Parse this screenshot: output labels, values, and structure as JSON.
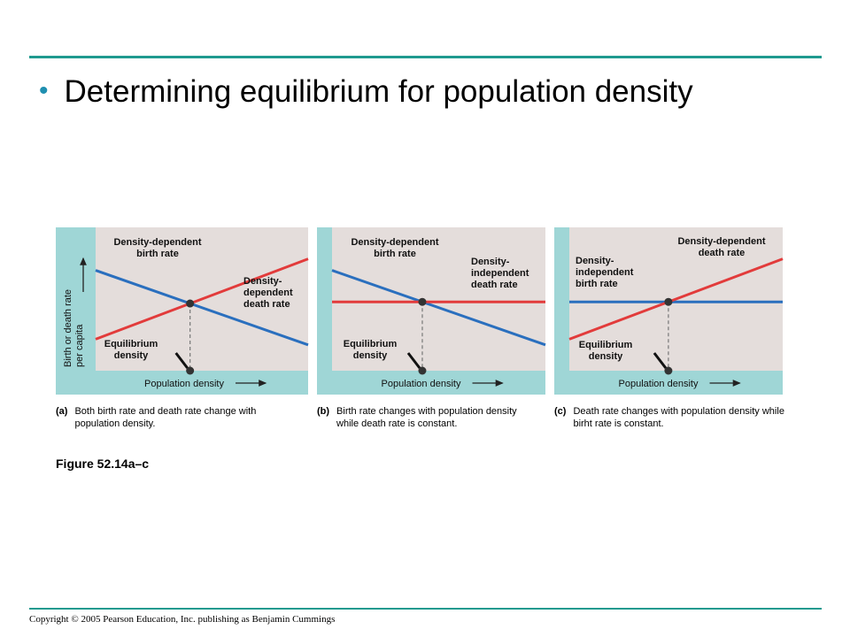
{
  "slide": {
    "bullet": "•",
    "title": "Determining equilibrium for population density",
    "figure_label": "Figure 52.14a–c",
    "copyright": "Copyright © 2005 Pearson Education, Inc. publishing as Benjamin Cummings"
  },
  "colors": {
    "accent_rule": "#1f9a8f",
    "panel_frame": "#9fd6d6",
    "plot_bg": "#e4dddb",
    "birth_rate": "#2a6fbe",
    "death_rate": "#e23b3b"
  },
  "y_axis_label": [
    "Birth or death rate",
    "per capita"
  ],
  "panels": [
    {
      "id": "a",
      "caption_label": "(a)",
      "caption_text": "Both birth rate and death rate change with population density.",
      "x_axis_label": "Population density",
      "blue_label": [
        "Density-dependent",
        "birth rate"
      ],
      "red_label": [
        "Density-",
        "dependent",
        "death rate"
      ],
      "equilibrium_label": [
        "Equilibrium",
        "density"
      ],
      "blue_line": {
        "type": "density-dependent",
        "start": 0.7,
        "end": 0.18
      },
      "red_line": {
        "type": "density-dependent",
        "start": 0.22,
        "end": 0.78
      }
    },
    {
      "id": "b",
      "caption_label": "(b)",
      "caption_text": "Birth rate changes with population density while death rate is constant.",
      "x_axis_label": "Population density",
      "blue_label": [
        "Density-dependent",
        "birth rate"
      ],
      "red_label": [
        "Density-",
        "independent",
        "death rate"
      ],
      "equilibrium_label": [
        "Equilibrium",
        "density"
      ],
      "blue_line": {
        "type": "density-dependent",
        "start": 0.7,
        "end": 0.18
      },
      "red_line": {
        "type": "density-independent",
        "start": 0.48,
        "end": 0.48
      }
    },
    {
      "id": "c",
      "caption_label": "(c)",
      "caption_text": "Death rate changes with population density while birht rate is constant.",
      "x_axis_label": "Population density",
      "blue_label": [
        "Density-",
        "independent",
        "birth rate"
      ],
      "red_label": [
        "Density-dependent",
        "death rate"
      ],
      "equilibrium_label": [
        "Equilibrium",
        "density"
      ],
      "blue_line": {
        "type": "density-independent",
        "start": 0.48,
        "end": 0.48
      },
      "red_line": {
        "type": "density-dependent",
        "start": 0.22,
        "end": 0.78
      }
    }
  ]
}
